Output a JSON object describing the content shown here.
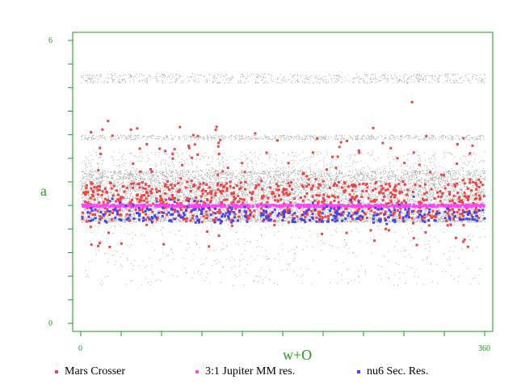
{
  "chart_data": {
    "type": "scatter",
    "title": "",
    "xlabel": "w+O",
    "ylabel": "a",
    "xlim": [
      0,
      360
    ],
    "ylim": [
      0,
      6
    ],
    "x_tick_labels": [
      "0",
      "360"
    ],
    "y_tick_labels": [
      "0",
      "6"
    ],
    "grid": false,
    "legend_placement": "bottom",
    "background_population": {
      "color": "#a8a8a8",
      "bands": [
        {
          "a_min": 2.15,
          "a_max": 2.25,
          "density": "high"
        },
        {
          "a_min": 2.25,
          "a_max": 3.25,
          "density": "very high"
        },
        {
          "a_min": 3.25,
          "a_max": 3.65,
          "density": "low"
        },
        {
          "a_min": 3.9,
          "a_max": 4.0,
          "density": "medium"
        },
        {
          "a_min": 5.1,
          "a_max": 5.3,
          "density": "medium"
        },
        {
          "a_min": 0.8,
          "a_max": 2.1,
          "density": "sparse"
        }
      ]
    },
    "series": [
      {
        "name": "Mars Crosser",
        "color": "#ee4444",
        "a_range": [
          1.6,
          4.2
        ],
        "concentration": "2.2-3.0",
        "approx_count": 900
      },
      {
        "name": "3:1 Jupiter MM res.",
        "color": "#ff44ff",
        "a_range": [
          2.48,
          2.52
        ],
        "concentration": "2.50",
        "approx_count": 600
      },
      {
        "name": "nu6 Sec. Res.",
        "color": "#4444ee",
        "a_range": [
          2.1,
          2.7
        ],
        "concentration": "2.15-2.45",
        "approx_count": 300
      }
    ],
    "outliers": [
      {
        "series": "Mars Crosser",
        "x": 24,
        "y": 4.3
      },
      {
        "series": "Mars Crosser",
        "x": 295,
        "y": 4.7
      },
      {
        "series": "Mars Crosser",
        "x": 100,
        "y": 4.0
      },
      {
        "series": "Mars Crosser",
        "x": 123,
        "y": 3.6
      }
    ]
  },
  "colors": {
    "axis": "#1a9e1a",
    "background_points": "#a8a8a8",
    "plot_background": "#ffffff"
  }
}
